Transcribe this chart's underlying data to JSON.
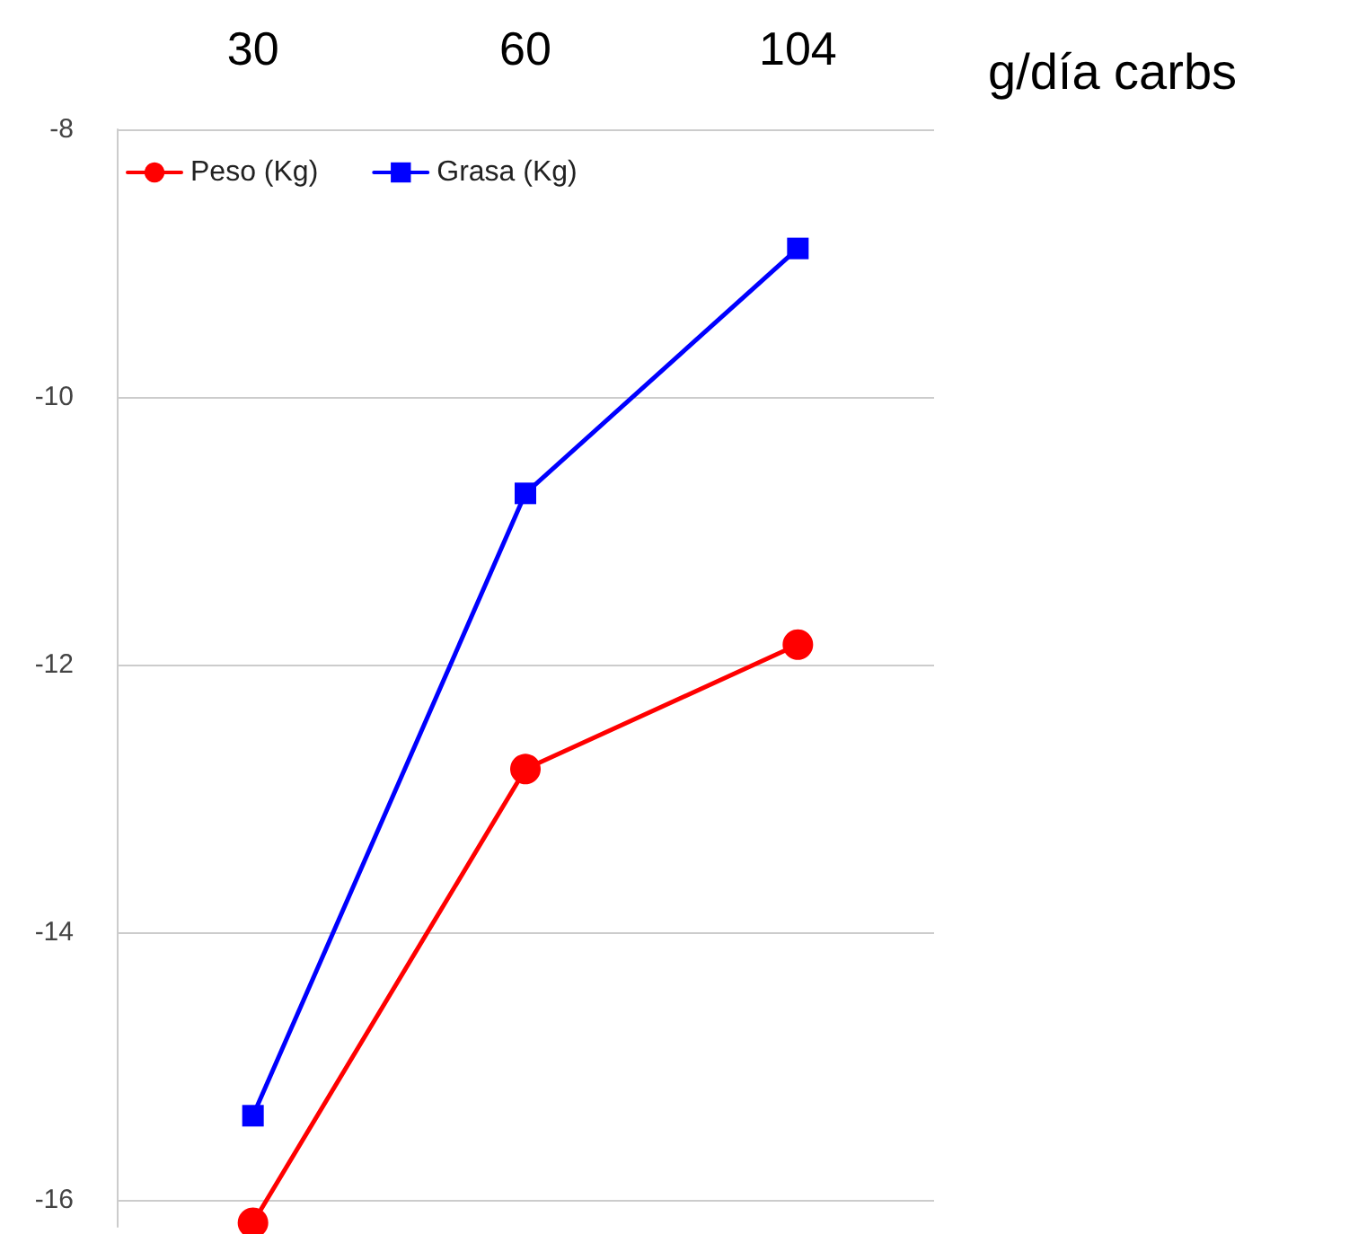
{
  "chart_data": {
    "type": "line",
    "xlabel": "g/día carbs",
    "categories": [
      "30",
      "60",
      "104"
    ],
    "series": [
      {
        "name": "Peso (Kg)",
        "color": "#ff0000",
        "marker": "circle",
        "values": [
          -16.17,
          -12.78,
          -11.85
        ]
      },
      {
        "name": "Grasa (Kg)",
        "color": "#0000ff",
        "marker": "square",
        "values": [
          -15.37,
          -10.72,
          -8.89
        ]
      }
    ],
    "ylim": [
      -16.2,
      -8
    ],
    "yticks": [
      -16,
      -14,
      -12,
      -10,
      -8
    ],
    "grid": "y",
    "legend": "top left"
  }
}
